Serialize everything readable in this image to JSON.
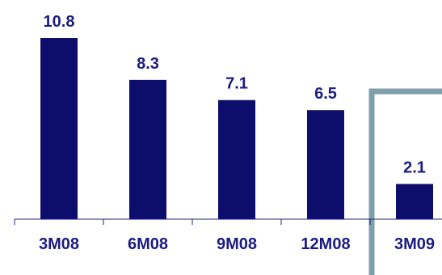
{
  "chart_data": {
    "type": "bar",
    "title": "",
    "xlabel": "",
    "ylabel": "",
    "categories": [
      "3M08",
      "6M08",
      "9M08",
      "12M08",
      "3M09"
    ],
    "values": [
      10.8,
      8.3,
      7.1,
      6.5,
      2.1
    ],
    "value_labels": [
      "10.8",
      "8.3",
      "7.1",
      "6.5",
      "2.1"
    ],
    "ylim": [
      0,
      12
    ],
    "grid": false,
    "legend": "none",
    "highlighted_category": "3M09",
    "colors": {
      "bar": "#0d0d6b",
      "text": "#1c1c80",
      "axis": "#1c1c80",
      "highlight_frame": "#7f9fad"
    }
  }
}
